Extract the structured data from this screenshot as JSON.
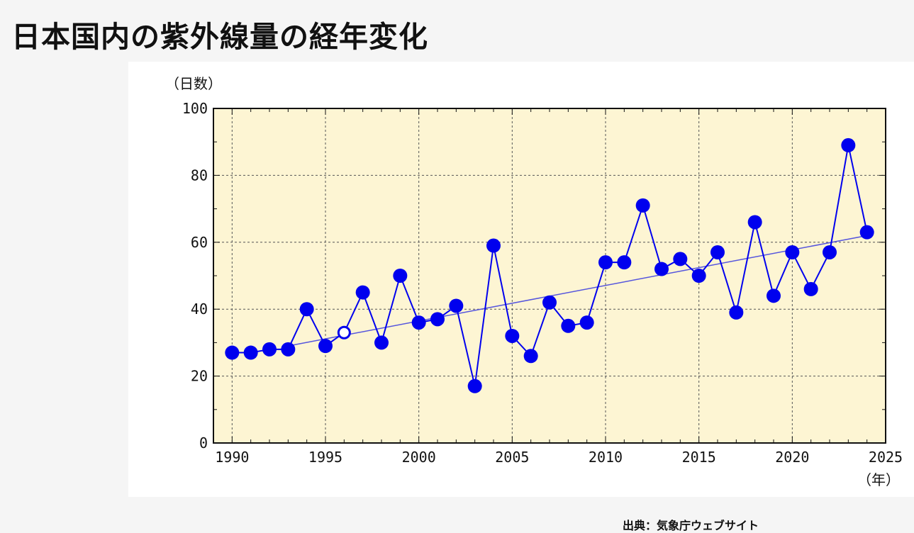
{
  "page": {
    "title": "日本国内の紫外線量の経年変化",
    "source": "出典：気象庁ウェブサイト"
  },
  "colors": {
    "plot_background": "#fdf5d3",
    "series": "#0000ee",
    "trend": "#5555dd",
    "grid": "#555555"
  },
  "chart_data": {
    "type": "line",
    "title": "",
    "y_unit_label": "（日数）",
    "x_unit_label": "（年）",
    "xlim": [
      1989,
      2025
    ],
    "ylim": [
      0,
      100
    ],
    "x_ticks": [
      1990,
      1995,
      2000,
      2005,
      2010,
      2015,
      2020,
      2025
    ],
    "y_ticks": [
      0,
      20,
      40,
      60,
      80,
      100
    ],
    "grid": true,
    "series": [
      {
        "name": "",
        "x": [
          1990,
          1991,
          1992,
          1993,
          1994,
          1995,
          1996,
          1997,
          1998,
          1999,
          2000,
          2001,
          2002,
          2003,
          2004,
          2005,
          2006,
          2007,
          2008,
          2009,
          2010,
          2011,
          2012,
          2013,
          2014,
          2015,
          2016,
          2017,
          2018,
          2019,
          2020,
          2021,
          2022,
          2023,
          2024
        ],
        "y": [
          27,
          27,
          28,
          28,
          40,
          29,
          33,
          45,
          30,
          50,
          36,
          37,
          41,
          17,
          59,
          32,
          26,
          42,
          35,
          36,
          54,
          54,
          71,
          52,
          55,
          50,
          57,
          39,
          66,
          44,
          57,
          46,
          57,
          89,
          63
        ],
        "hollow_years": [
          1996
        ]
      }
    ],
    "trend_line": {
      "x": [
        1993,
        2024
      ],
      "y": [
        29,
        62
      ]
    }
  }
}
